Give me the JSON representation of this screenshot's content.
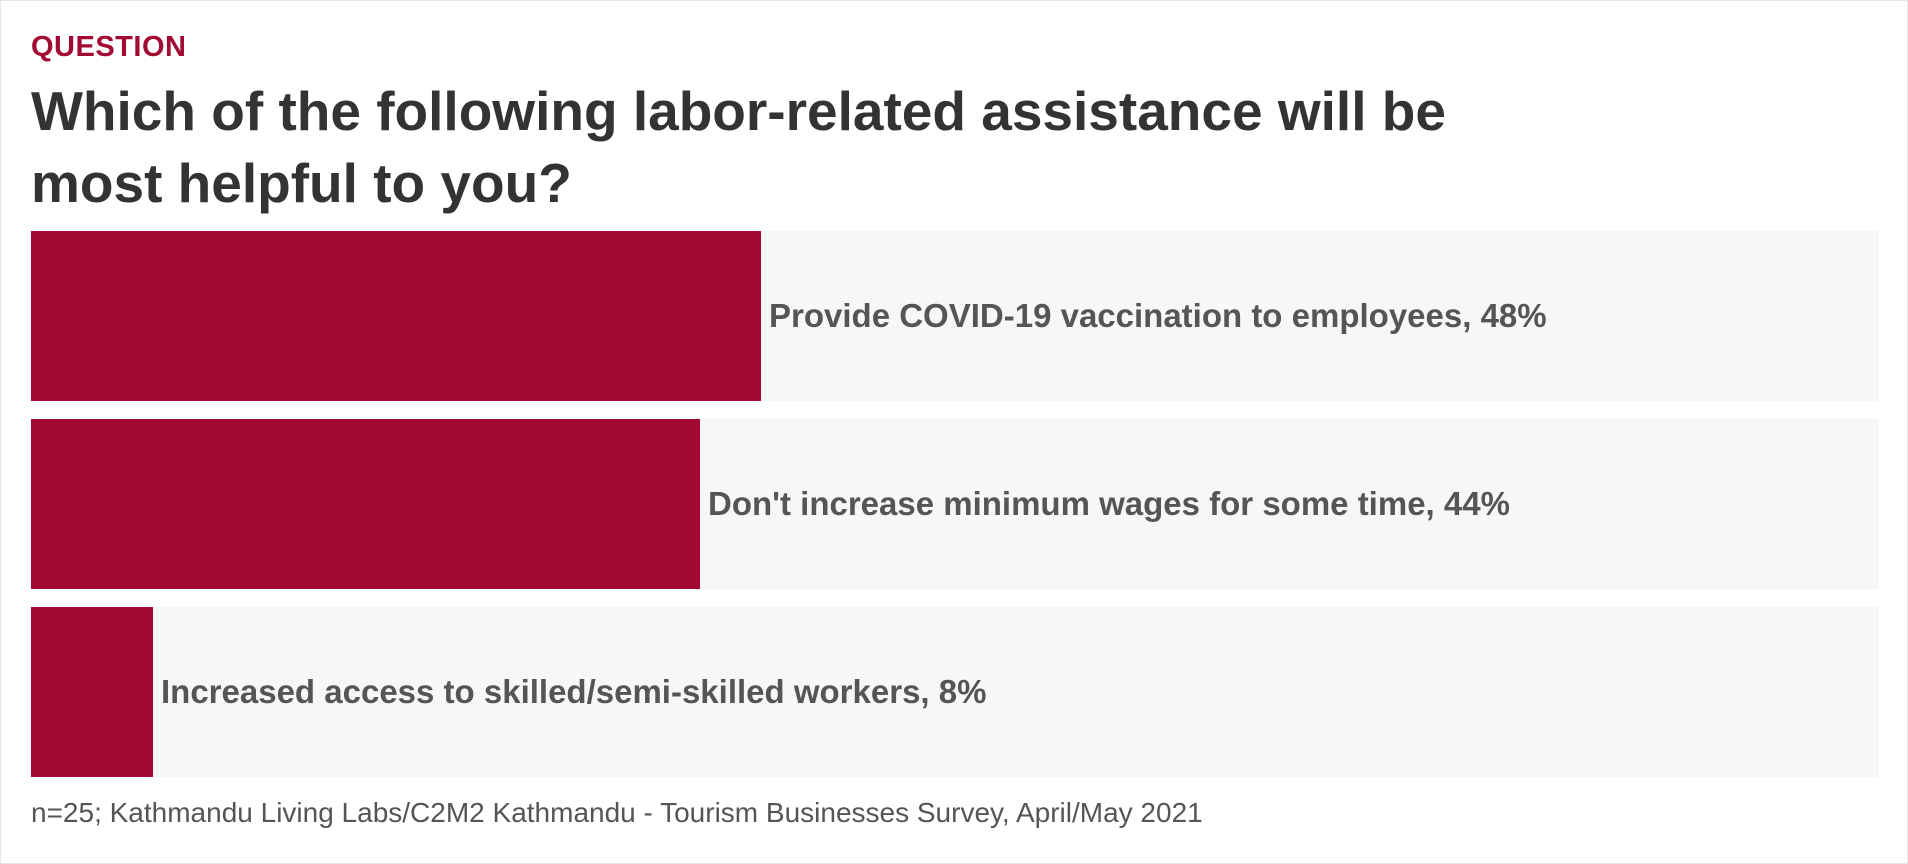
{
  "header": {
    "eyebrow": "QUESTION",
    "title": "Which of the following labor-related assistance will be most helpful to you?"
  },
  "chart_data": {
    "type": "bar",
    "orientation": "horizontal",
    "categories": [
      "Provide COVID-19 vaccination to employees",
      "Don't increase minimum wages for some time",
      "Increased access to skilled/semi-skilled workers"
    ],
    "values": [
      48,
      44,
      8
    ],
    "value_labels": [
      "Provide COVID-19 vaccination to employees, 48%",
      "Don't increase minimum wages for some time, 44%",
      "Increased access to skilled/semi-skilled workers, 8%"
    ],
    "unit": "%",
    "xlim": [
      0,
      100
    ],
    "grid": false,
    "colors": {
      "bar": "#a20a34",
      "track": "#f7f7f7",
      "accent": "#a20a34"
    }
  },
  "footer": {
    "note": "n=25; Kathmandu Living Labs/C2M2 Kathmandu - Tourism Businesses Survey, April/May 2021"
  }
}
